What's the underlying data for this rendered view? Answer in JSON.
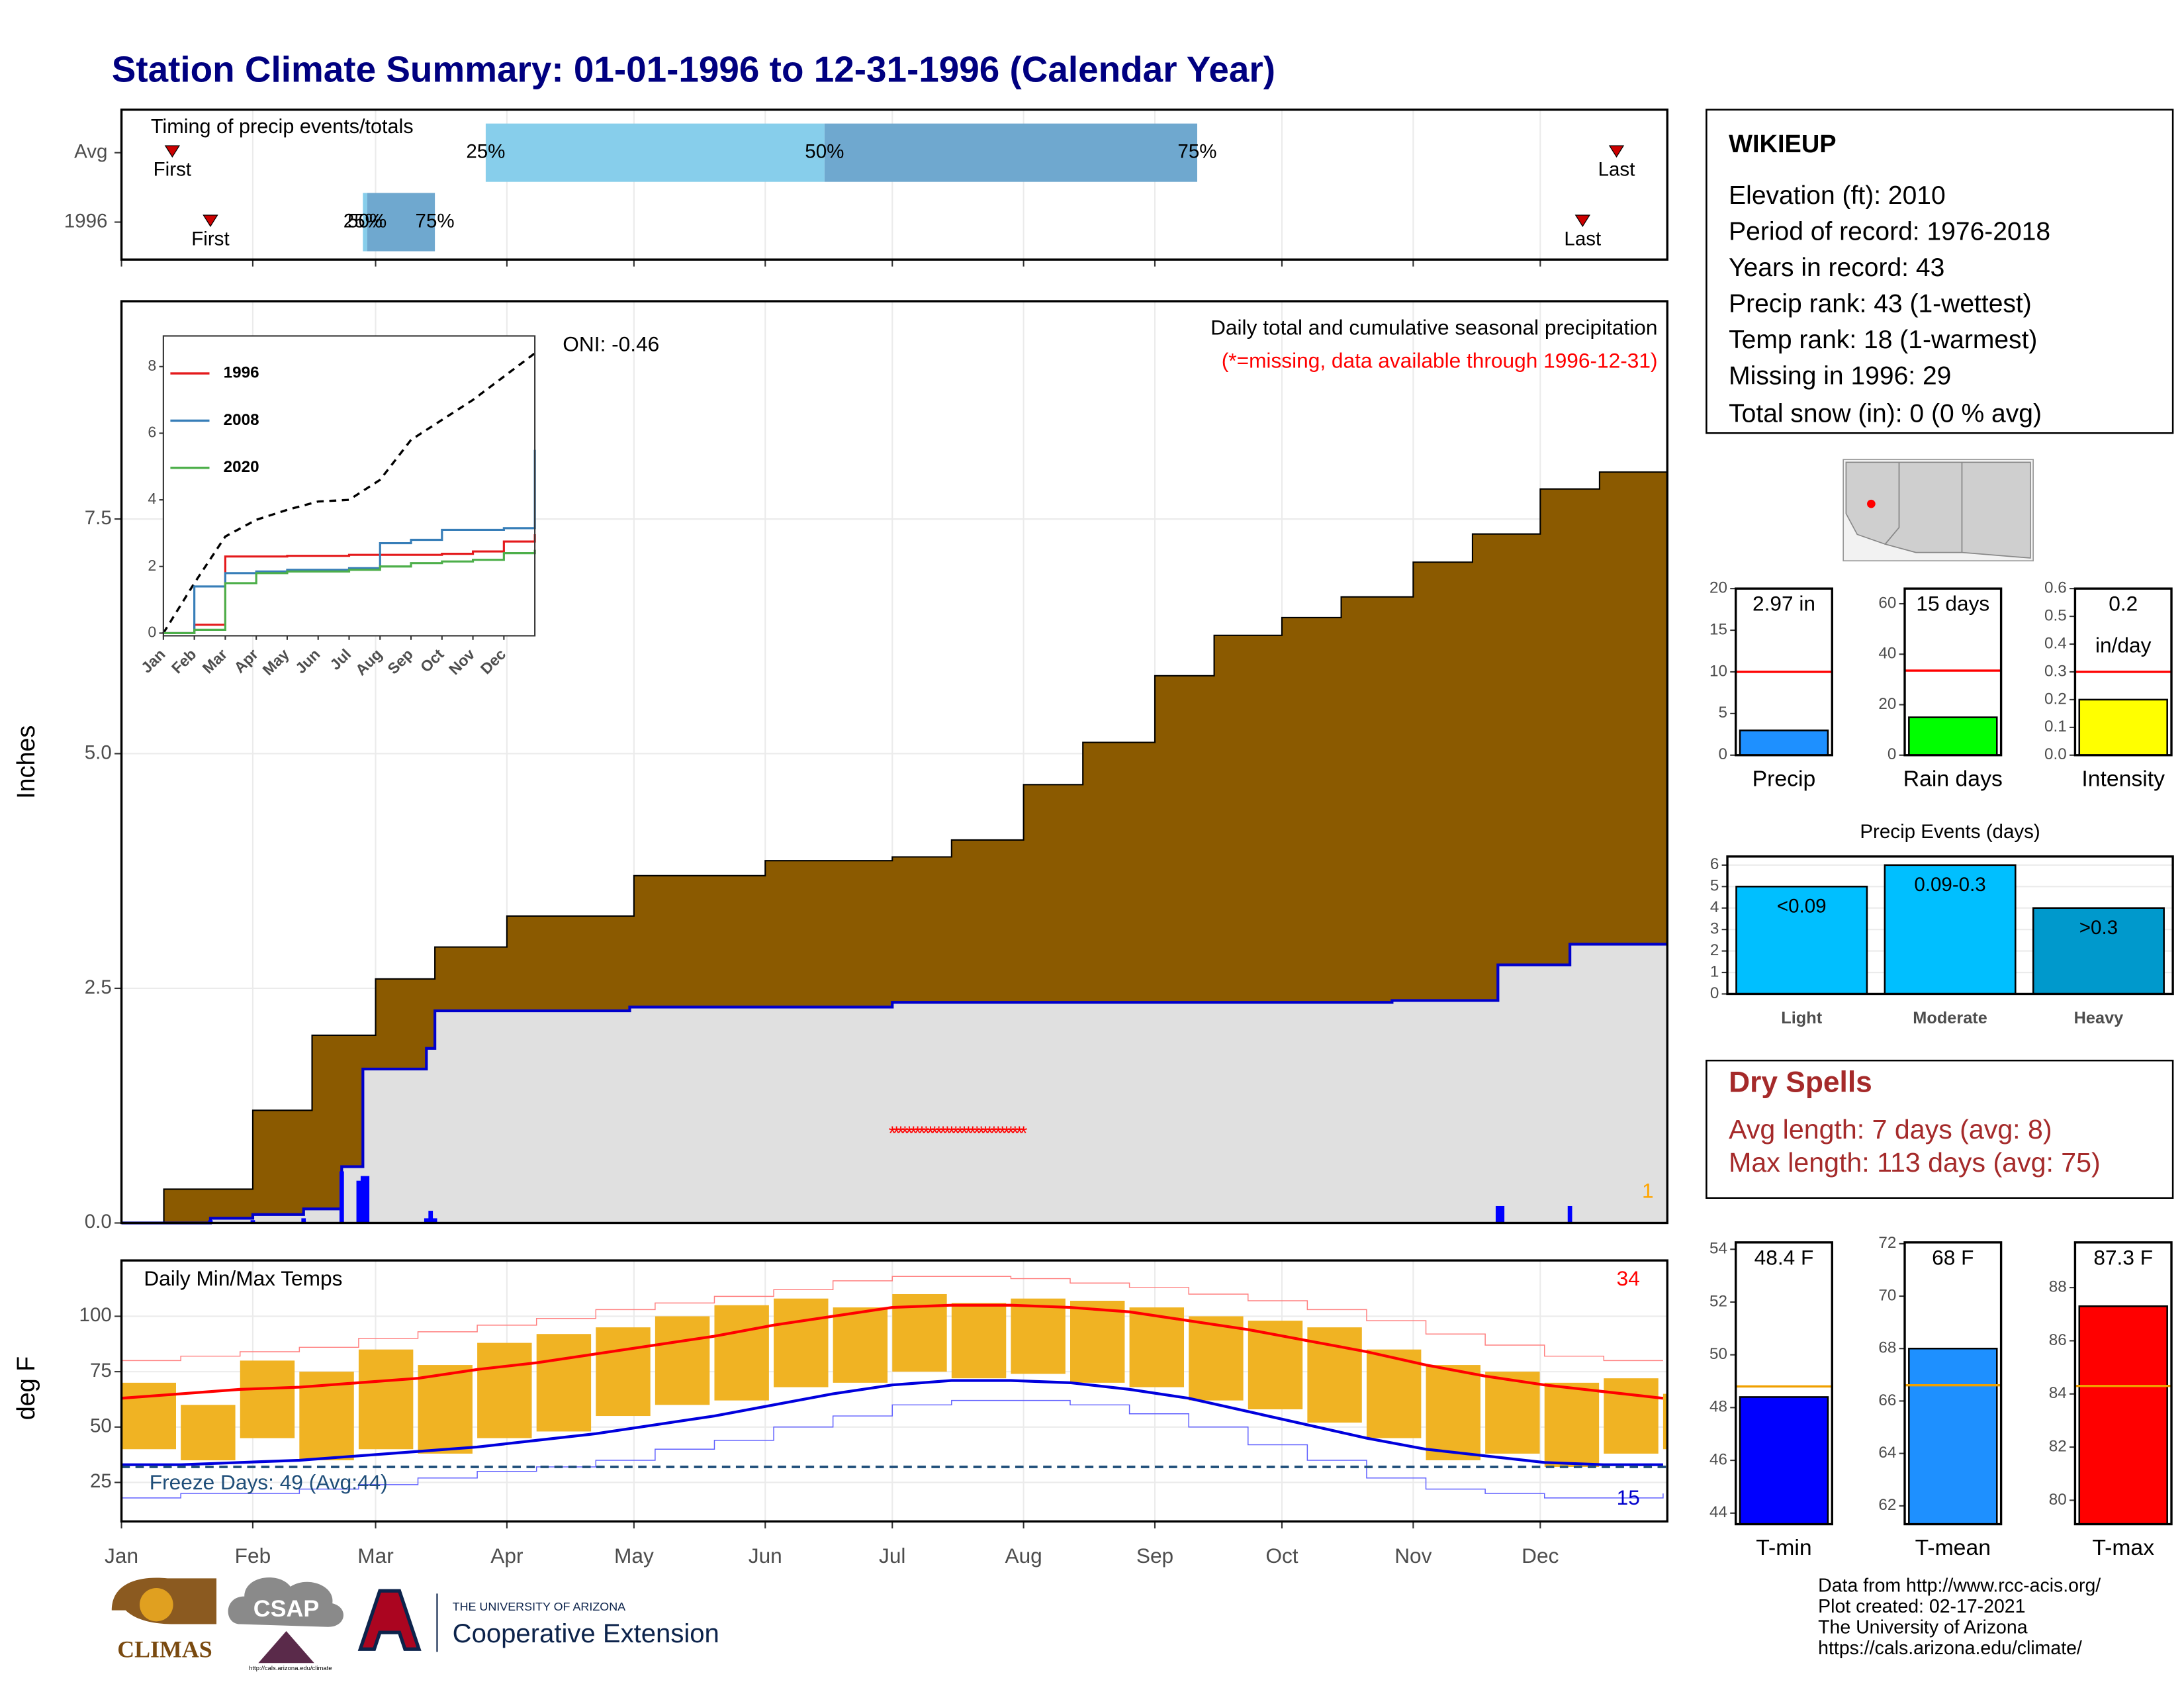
{
  "title": "Station Climate Summary: 01-01-1996 to 12-31-1996 (Calendar Year)",
  "station": {
    "name": "WIKIEUP",
    "lines": [
      "Elevation (ft): 2010",
      "Period of record: 1976-2018",
      "Years in record: 43",
      "Precip rank: 43 (1-wettest)",
      "Temp rank: 18 (1-warmest)",
      "Missing in 1996: 29",
      "Total snow (in): 0 (0 % avg)"
    ]
  },
  "dry_spells": {
    "title": "Dry Spells",
    "lines": [
      "Avg length: 7 days (avg: 8)",
      "Max length: 113 days (avg: 75)"
    ]
  },
  "footer": [
    "Data from http://www.rcc-acis.org/",
    "Plot created: 02-17-2021",
    "The University of Arizona",
    "https://cals.arizona.edu/climate/"
  ],
  "logos": {
    "climas": "CLIMAS",
    "csap": "CSAP",
    "csap_url": "http://cals.arizona.edu/climate",
    "university": "THE UNIVERSITY OF ARIZONA",
    "extension": "Cooperative Extension"
  },
  "chart_data": [
    {
      "type": "timing",
      "title": "Timing of precip events/totals",
      "categories": [
        "Avg",
        "1996"
      ],
      "labels": [
        "First",
        "25%",
        "50%",
        "75%",
        "Last"
      ],
      "values": [
        [
          12,
          86,
          166,
          254,
          353
        ],
        [
          21,
          57,
          58,
          74,
          345
        ]
      ],
      "colors": [
        "#87ceeb",
        "#6fa8cf"
      ],
      "marker_color": "#cc0000",
      "xlim": [
        0,
        365
      ]
    },
    {
      "type": "precip",
      "title": "Daily total and cumulative seasonal precipitation",
      "subtitle": "(*=missing, data available through 1996-12-31)",
      "subtitle_color": "#ff0000",
      "annotation": "ONI: -0.46",
      "corner_label": "1",
      "corner_color": "#ffa500",
      "ylabel": "Inches",
      "xlim": [
        0,
        365
      ],
      "ylim": [
        0,
        9.82
      ],
      "yticks": [
        {
          "value": 0,
          "label": "0.0"
        },
        2.5,
        {
          "value": 5,
          "label": "5.0"
        },
        7.5
      ],
      "grid": true,
      "avg": {
        "color": "#8b5a00",
        "x": [
          0,
          2,
          10,
          31,
          45,
          60,
          74,
          91,
          121,
          152,
          182,
          196,
          213,
          227,
          244,
          258,
          274,
          288,
          305,
          319,
          335,
          349,
          365
        ],
        "values": [
          0,
          0,
          0.36,
          1.2,
          2.0,
          2.6,
          2.94,
          3.27,
          3.7,
          3.86,
          3.9,
          4.08,
          4.67,
          5.12,
          5.83,
          6.26,
          6.45,
          6.67,
          7.04,
          7.34,
          7.82,
          8.0,
          8.42
        ]
      },
      "cumulative": {
        "color": "#0000cc",
        "fill": "#e0e0e0",
        "x": [
          0,
          21,
          31,
          43,
          52,
          57,
          72,
          74,
          120,
          182,
          300,
          325,
          342,
          365
        ],
        "values": [
          0,
          0.05,
          0.09,
          0.15,
          0.6,
          1.64,
          1.86,
          2.26,
          2.3,
          2.35,
          2.37,
          2.75,
          2.97,
          2.97
        ]
      },
      "daily": {
        "color": "#0000ff",
        "x": [
          21,
          31,
          43,
          52,
          56,
          57,
          58,
          72,
          73,
          74,
          325,
          326,
          342
        ],
        "values": [
          0.03,
          0.03,
          0.05,
          0.55,
          0.45,
          0.5,
          0.5,
          0.05,
          0.13,
          0.05,
          0.18,
          0.18,
          0.18
        ]
      },
      "missing_label": "*",
      "missing_color": "#ff0000",
      "missing_y": 1,
      "missing_x": [
        182,
        183,
        184,
        185,
        186,
        187,
        188,
        189,
        190,
        191,
        192,
        193,
        194,
        195,
        196,
        197,
        198,
        199,
        200,
        201,
        202,
        203,
        204,
        205,
        206,
        207,
        208,
        209,
        210,
        211,
        212,
        213
      ]
    },
    {
      "type": "line",
      "x": [
        0,
        1,
        2,
        3,
        4,
        5,
        6,
        7,
        8,
        9,
        10,
        11,
        12
      ],
      "xlim": [
        0,
        12
      ],
      "xticks": [
        {
          "value": 0,
          "label": "Jan"
        },
        {
          "value": 1,
          "label": "Feb"
        },
        {
          "value": 2,
          "label": "Mar"
        },
        {
          "value": 3,
          "label": "Apr"
        },
        {
          "value": 4,
          "label": "May"
        },
        {
          "value": 5,
          "label": "Jun"
        },
        {
          "value": 6,
          "label": "Jul"
        },
        {
          "value": 7,
          "label": "Aug"
        },
        {
          "value": 8,
          "label": "Sep"
        },
        {
          "value": 9,
          "label": "Oct"
        },
        {
          "value": 10,
          "label": "Nov"
        },
        {
          "value": 11,
          "label": "Dec"
        }
      ],
      "ylim": [
        -0.08,
        8.92
      ],
      "yticks": [
        0,
        2,
        4,
        6,
        8
      ],
      "avg": {
        "color": "#000000",
        "dashed": true,
        "values": [
          0,
          1.5,
          2.9,
          3.4,
          3.7,
          3.95,
          4.0,
          4.6,
          5.8,
          6.4,
          7.0,
          7.7,
          8.4
        ]
      },
      "series": [
        {
          "name": "1996",
          "color": "#e41a1c",
          "values": [
            0,
            0.25,
            2.3,
            2.3,
            2.32,
            2.32,
            2.35,
            2.35,
            2.35,
            2.38,
            2.45,
            2.75,
            2.97
          ]
        },
        {
          "name": "2008",
          "color": "#377eb8",
          "values": [
            0,
            1.4,
            1.8,
            1.85,
            1.9,
            1.9,
            1.95,
            2.7,
            2.8,
            3.1,
            3.1,
            3.15,
            5.5
          ]
        },
        {
          "name": "2020",
          "color": "#4daf4a",
          "values": [
            0,
            0.1,
            1.5,
            1.8,
            1.85,
            1.85,
            1.9,
            2.0,
            2.1,
            2.15,
            2.2,
            2.4,
            2.5
          ]
        }
      ]
    },
    {
      "type": "temperature",
      "title": "Daily Min/Max Temps",
      "ylabel": "deg F",
      "hot_label": "34",
      "hot_color": "#ff0000",
      "cold_label": "15",
      "cold_color": "#0000cc",
      "freeze_label": "Freeze Days: 49 (Avg:44)",
      "freeze": 32,
      "freeze_color": "#1f4e79",
      "xlim": [
        0,
        365
      ],
      "ylim": [
        7.4,
        125.2
      ],
      "yticks": [
        25,
        50,
        75,
        100
      ],
      "grid": true,
      "xticks": [
        {
          "value": 0,
          "label": "Jan"
        },
        {
          "value": 31,
          "label": "Feb"
        },
        {
          "value": 60,
          "label": "Mar"
        },
        {
          "value": 91,
          "label": "Apr"
        },
        {
          "value": 121,
          "label": "May"
        },
        {
          "value": 152,
          "label": "Jun"
        },
        {
          "value": 182,
          "label": "Jul"
        },
        {
          "value": 213,
          "label": "Aug"
        },
        {
          "value": 244,
          "label": "Sep"
        },
        {
          "value": 274,
          "label": "Oct"
        },
        {
          "value": 305,
          "label": "Nov"
        },
        {
          "value": 335,
          "label": "Dec"
        }
      ],
      "x": [
        0,
        14,
        28,
        42,
        56,
        70,
        84,
        98,
        112,
        126,
        140,
        154,
        168,
        182,
        196,
        210,
        224,
        238,
        252,
        266,
        280,
        294,
        308,
        322,
        336,
        350,
        364
      ],
      "bar_color": "#f0b323",
      "daily_max": [
        70,
        60,
        80,
        75,
        85,
        78,
        88,
        92,
        95,
        100,
        105,
        108,
        104,
        110,
        106,
        108,
        107,
        104,
        100,
        98,
        95,
        85,
        78,
        75,
        70,
        72,
        65
      ],
      "daily_min": [
        40,
        35,
        45,
        35,
        40,
        38,
        45,
        48,
        55,
        60,
        62,
        68,
        70,
        75,
        72,
        74,
        70,
        68,
        62,
        58,
        52,
        45,
        35,
        38,
        32,
        38,
        40
      ],
      "series": [
        {
          "color": "#ff8080",
          "thin": true,
          "values": [
            80,
            82,
            84,
            86,
            90,
            93,
            96,
            99,
            103,
            106,
            109,
            112,
            116,
            118,
            118,
            117,
            115,
            113,
            110,
            107,
            103,
            98,
            92,
            87,
            82,
            80,
            80
          ]
        },
        {
          "color": "#6060ff",
          "thin": true,
          "values": [
            18,
            20,
            20,
            22,
            24,
            27,
            30,
            32,
            35,
            40,
            44,
            50,
            55,
            60,
            62,
            62,
            60,
            56,
            50,
            42,
            35,
            27,
            22,
            20,
            18,
            18,
            20
          ]
        },
        {
          "color": "#ff0000",
          "values": [
            63,
            65,
            67,
            68,
            70,
            72,
            76,
            79,
            83,
            87,
            91,
            96,
            100,
            104,
            105,
            105,
            104,
            102,
            98,
            94,
            89,
            84,
            78,
            73,
            69,
            66,
            63
          ]
        },
        {
          "color": "#0000dd",
          "values": [
            33,
            33,
            34,
            35,
            37,
            39,
            41,
            44,
            47,
            51,
            55,
            60,
            65,
            69,
            71,
            71,
            70,
            67,
            63,
            57,
            51,
            45,
            40,
            37,
            34,
            33,
            33
          ]
        }
      ]
    },
    {
      "type": "bar",
      "categories": [
        "Precip"
      ],
      "values": [
        2.97
      ],
      "value_labels": [
        "2.97 in"
      ],
      "color": "#1e90ff",
      "reference": 10,
      "reference_color": "#ff0000",
      "ylim": [
        0,
        20
      ],
      "yticks": [
        0,
        5,
        10,
        15,
        20
      ]
    },
    {
      "type": "bar",
      "categories": [
        "Rain days"
      ],
      "values": [
        15
      ],
      "value_labels": [
        "15 days"
      ],
      "color": "#00ff00",
      "reference": 33.5,
      "reference_color": "#ff0000",
      "ylim": [
        0,
        66
      ],
      "yticks": [
        0,
        20,
        40,
        60
      ]
    },
    {
      "type": "bar",
      "categories": [
        "Intensity"
      ],
      "values": [
        0.2
      ],
      "value_labels": [
        "0.2"
      ],
      "value_unit": "in/day",
      "color": "#ffff00",
      "reference": 0.3,
      "reference_color": "#ff0000",
      "ylim": [
        0,
        0.6
      ],
      "yticks": [
        {
          "value": 0,
          "label": "0.0"
        },
        0.1,
        0.2,
        0.3,
        0.4,
        0.5,
        0.6
      ]
    },
    {
      "type": "bar",
      "title": "Precip Events (days)",
      "categories": [
        "Light",
        "Moderate",
        "Heavy"
      ],
      "values": [
        5,
        6,
        4
      ],
      "value_labels": [
        "<0.09",
        "0.09-0.3",
        ">0.3"
      ],
      "colors": [
        "#00bfff",
        "#00bfff",
        "#0099cc"
      ],
      "ylim": [
        0,
        6.4
      ],
      "yticks": [
        0,
        1,
        2,
        3,
        4,
        5,
        6
      ],
      "grid": true
    },
    {
      "type": "bar",
      "categories": [
        "T-min"
      ],
      "values": [
        48.4
      ],
      "value_labels": [
        "48.4 F"
      ],
      "color": "#0000ff",
      "reference": 48.8,
      "reference_color": "#f0a000",
      "ylim": [
        43.58,
        54.26
      ],
      "yticks": [
        44,
        46,
        48,
        50,
        52,
        54
      ]
    },
    {
      "type": "bar",
      "categories": [
        "T-mean"
      ],
      "values": [
        68
      ],
      "value_labels": [
        "68 F"
      ],
      "color": "#1e90ff",
      "reference": 66.6,
      "reference_color": "#f0a000",
      "ylim": [
        61.3,
        72.05
      ],
      "yticks": [
        62,
        64,
        66,
        68,
        70,
        72
      ]
    },
    {
      "type": "bar",
      "categories": [
        "T-max"
      ],
      "values": [
        87.3
      ],
      "value_labels": [
        "87.3 F"
      ],
      "color": "#ff0000",
      "reference": 84.3,
      "reference_color": "#f0a000",
      "ylim": [
        79.1,
        89.7
      ],
      "yticks": [
        80,
        82,
        84,
        86,
        88
      ]
    }
  ]
}
